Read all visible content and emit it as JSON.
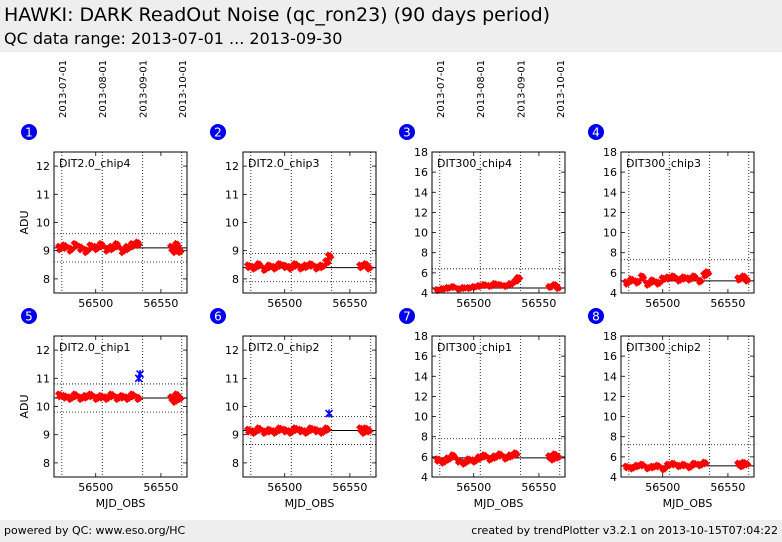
{
  "header": {
    "title": "HAWKI: DARK ReadOut Noise (qc_ron23) (90 days period)",
    "subtitle": "QC data range: 2013-07-01 ... 2013-09-30"
  },
  "footer": {
    "left": "powered by QC: www.eso.org/HC",
    "right": "created by trendPlotter v3.2.1 on 2013-10-15T07:04:22"
  },
  "date_ticks": [
    {
      "label": "2013-07-01",
      "mjd": 56474
    },
    {
      "label": "2013-08-01",
      "mjd": 56505
    },
    {
      "label": "2013-09-01",
      "mjd": 56536
    },
    {
      "label": "2013-10-01",
      "mjd": 56566
    }
  ],
  "chart_data": [
    {
      "type": "scatter",
      "panel": "1",
      "title": "DIT2.0_chip4",
      "ylabel": "ADU",
      "xlabel": "",
      "xlim": [
        56468,
        56570
      ],
      "ylim": [
        7.5,
        12.5
      ],
      "yticks": [
        8,
        9,
        10,
        11,
        12
      ],
      "xticks": [
        56500,
        56550
      ],
      "ref_line": 9.1,
      "limit_lines": [
        8.6,
        9.6
      ],
      "show_dates": true,
      "y_spread": 0.12,
      "series": [
        {
          "color": "#ff0000",
          "marker": "diamond",
          "points": [
            [
              56472,
              9.1
            ],
            [
              56476,
              9.15
            ],
            [
              56480,
              9.05
            ],
            [
              56484,
              9.2
            ],
            [
              56488,
              9.1
            ],
            [
              56492,
              9.0
            ],
            [
              56496,
              9.15
            ],
            [
              56500,
              9.1
            ],
            [
              56504,
              9.2
            ],
            [
              56508,
              9.05
            ],
            [
              56512,
              9.1
            ],
            [
              56516,
              9.2
            ],
            [
              56520,
              9.0
            ],
            [
              56524,
              9.1
            ],
            [
              56528,
              9.2
            ],
            [
              56532,
              9.25
            ],
            [
              56558,
              9.1
            ],
            [
              56560,
              9.0
            ],
            [
              56562,
              9.2
            ],
            [
              56564,
              9.0
            ]
          ]
        }
      ]
    },
    {
      "type": "scatter",
      "panel": "2",
      "title": "DIT2.0_chip3",
      "ylabel": "",
      "xlabel": "",
      "xlim": [
        56468,
        56570
      ],
      "ylim": [
        7.5,
        12.5
      ],
      "yticks": [
        8,
        9,
        10,
        11,
        12
      ],
      "xticks": [
        56500,
        56550
      ],
      "ref_line": 8.4,
      "limit_lines": [
        7.9,
        8.9
      ],
      "show_dates": false,
      "y_spread": 0.1,
      "series": [
        {
          "color": "#ff0000",
          "marker": "diamond",
          "points": [
            [
              56472,
              8.45
            ],
            [
              56476,
              8.4
            ],
            [
              56480,
              8.5
            ],
            [
              56484,
              8.35
            ],
            [
              56488,
              8.45
            ],
            [
              56492,
              8.4
            ],
            [
              56496,
              8.5
            ],
            [
              56500,
              8.45
            ],
            [
              56504,
              8.4
            ],
            [
              56508,
              8.5
            ],
            [
              56512,
              8.4
            ],
            [
              56516,
              8.45
            ],
            [
              56520,
              8.5
            ],
            [
              56524,
              8.4
            ],
            [
              56528,
              8.45
            ],
            [
              56532,
              8.6
            ],
            [
              56534,
              8.8
            ],
            [
              56558,
              8.45
            ],
            [
              56562,
              8.5
            ],
            [
              56564,
              8.4
            ]
          ]
        }
      ]
    },
    {
      "type": "scatter",
      "panel": "3",
      "title": "DIT300_chip4",
      "ylabel": "",
      "xlabel": "",
      "xlim": [
        56468,
        56570
      ],
      "ylim": [
        4,
        18
      ],
      "yticks": [
        4,
        6,
        8,
        10,
        12,
        14,
        16,
        18
      ],
      "xticks": [
        56500,
        56550
      ],
      "ref_line": 4.5,
      "limit_lines": [
        6.4
      ],
      "show_dates": true,
      "y_spread": 0.15,
      "series": [
        {
          "color": "#ff0000",
          "marker": "diamond",
          "points": [
            [
              56472,
              4.3
            ],
            [
              56476,
              4.4
            ],
            [
              56480,
              4.5
            ],
            [
              56484,
              4.6
            ],
            [
              56488,
              4.4
            ],
            [
              56492,
              4.5
            ],
            [
              56496,
              4.5
            ],
            [
              56500,
              4.6
            ],
            [
              56504,
              4.7
            ],
            [
              56508,
              4.8
            ],
            [
              56512,
              4.7
            ],
            [
              56516,
              4.9
            ],
            [
              56520,
              4.8
            ],
            [
              56524,
              4.7
            ],
            [
              56528,
              4.9
            ],
            [
              56532,
              5.2
            ],
            [
              56534,
              5.5
            ],
            [
              56558,
              4.6
            ],
            [
              56562,
              4.8
            ],
            [
              56564,
              4.5
            ]
          ]
        }
      ]
    },
    {
      "type": "scatter",
      "panel": "4",
      "title": "DIT300_chip3",
      "ylabel": "",
      "xlabel": "",
      "xlim": [
        56468,
        56570
      ],
      "ylim": [
        4,
        18
      ],
      "yticks": [
        4,
        6,
        8,
        10,
        12,
        14,
        16,
        18
      ],
      "xticks": [
        56500,
        56550
      ],
      "ref_line": 5.2,
      "limit_lines": [
        7.3
      ],
      "show_dates": false,
      "y_spread": 0.25,
      "series": [
        {
          "color": "#ff0000",
          "marker": "diamond",
          "points": [
            [
              56472,
              5.0
            ],
            [
              56476,
              5.3
            ],
            [
              56480,
              5.1
            ],
            [
              56484,
              5.6
            ],
            [
              56488,
              4.9
            ],
            [
              56492,
              5.2
            ],
            [
              56496,
              5.0
            ],
            [
              56500,
              5.4
            ],
            [
              56504,
              5.5
            ],
            [
              56508,
              5.6
            ],
            [
              56512,
              5.3
            ],
            [
              56516,
              5.5
            ],
            [
              56520,
              5.4
            ],
            [
              56524,
              5.6
            ],
            [
              56528,
              5.2
            ],
            [
              56532,
              5.8
            ],
            [
              56534,
              6.0
            ],
            [
              56558,
              5.4
            ],
            [
              56562,
              5.6
            ],
            [
              56564,
              5.3
            ]
          ]
        }
      ]
    },
    {
      "type": "scatter",
      "panel": "5",
      "title": "DIT2.0_chip1",
      "ylabel": "ADU",
      "xlabel": "MJD_OBS",
      "xlim": [
        56468,
        56570
      ],
      "ylim": [
        7.5,
        12.5
      ],
      "yticks": [
        8,
        9,
        10,
        11,
        12
      ],
      "xticks": [
        56500,
        56550
      ],
      "ref_line": 10.3,
      "limit_lines": [
        9.8,
        10.8
      ],
      "show_dates": false,
      "y_spread": 0.1,
      "series": [
        {
          "color": "#ff0000",
          "marker": "diamond",
          "points": [
            [
              56472,
              10.4
            ],
            [
              56476,
              10.35
            ],
            [
              56480,
              10.3
            ],
            [
              56484,
              10.4
            ],
            [
              56488,
              10.3
            ],
            [
              56492,
              10.35
            ],
            [
              56496,
              10.4
            ],
            [
              56500,
              10.3
            ],
            [
              56504,
              10.35
            ],
            [
              56508,
              10.3
            ],
            [
              56512,
              10.4
            ],
            [
              56516,
              10.3
            ],
            [
              56520,
              10.35
            ],
            [
              56524,
              10.3
            ],
            [
              56528,
              10.4
            ],
            [
              56532,
              10.3
            ],
            [
              56558,
              10.3
            ],
            [
              56560,
              10.2
            ],
            [
              56562,
              10.4
            ],
            [
              56564,
              10.3
            ]
          ]
        },
        {
          "color": "#0000ff",
          "marker": "star",
          "points": [
            [
              56533,
              11.0
            ],
            [
              56534,
              11.15
            ]
          ]
        }
      ]
    },
    {
      "type": "scatter",
      "panel": "6",
      "title": "DIT2.0_chip2",
      "ylabel": "",
      "xlabel": "MJD_OBS",
      "xlim": [
        56468,
        56570
      ],
      "ylim": [
        7.5,
        12.5
      ],
      "yticks": [
        8,
        9,
        10,
        11,
        12
      ],
      "xticks": [
        56500,
        56550
      ],
      "ref_line": 9.15,
      "limit_lines": [
        8.65,
        9.65
      ],
      "show_dates": false,
      "y_spread": 0.1,
      "series": [
        {
          "color": "#ff0000",
          "marker": "diamond",
          "points": [
            [
              56472,
              9.15
            ],
            [
              56476,
              9.1
            ],
            [
              56480,
              9.2
            ],
            [
              56484,
              9.1
            ],
            [
              56488,
              9.15
            ],
            [
              56492,
              9.1
            ],
            [
              56496,
              9.2
            ],
            [
              56500,
              9.15
            ],
            [
              56504,
              9.1
            ],
            [
              56508,
              9.2
            ],
            [
              56512,
              9.15
            ],
            [
              56516,
              9.1
            ],
            [
              56520,
              9.2
            ],
            [
              56524,
              9.15
            ],
            [
              56528,
              9.1
            ],
            [
              56532,
              9.2
            ],
            [
              56558,
              9.2
            ],
            [
              56560,
              9.1
            ],
            [
              56562,
              9.2
            ],
            [
              56564,
              9.15
            ]
          ]
        },
        {
          "color": "#0000ff",
          "marker": "star",
          "points": [
            [
              56534,
              9.75
            ]
          ]
        }
      ]
    },
    {
      "type": "scatter",
      "panel": "7",
      "title": "DIT300_chip1",
      "ylabel": "",
      "xlabel": "MJD_OBS",
      "xlim": [
        56468,
        56570
      ],
      "ylim": [
        4,
        18
      ],
      "yticks": [
        4,
        6,
        8,
        10,
        12,
        14,
        16,
        18
      ],
      "xticks": [
        56500,
        56550
      ],
      "ref_line": 5.9,
      "limit_lines": [
        7.8
      ],
      "show_dates": false,
      "y_spread": 0.25,
      "series": [
        {
          "color": "#ff0000",
          "marker": "diamond",
          "points": [
            [
              56472,
              5.7
            ],
            [
              56476,
              5.5
            ],
            [
              56480,
              5.8
            ],
            [
              56484,
              6.1
            ],
            [
              56488,
              5.6
            ],
            [
              56492,
              5.4
            ],
            [
              56496,
              5.7
            ],
            [
              56500,
              5.6
            ],
            [
              56504,
              5.9
            ],
            [
              56508,
              6.1
            ],
            [
              56512,
              5.8
            ],
            [
              56516,
              6.0
            ],
            [
              56520,
              6.2
            ],
            [
              56524,
              5.9
            ],
            [
              56528,
              6.1
            ],
            [
              56532,
              6.3
            ],
            [
              56558,
              6.0
            ],
            [
              56560,
              5.8
            ],
            [
              56562,
              6.2
            ],
            [
              56564,
              6.0
            ]
          ]
        }
      ]
    },
    {
      "type": "scatter",
      "panel": "8",
      "title": "DIT300_chip2",
      "ylabel": "",
      "xlabel": "MJD_OBS",
      "xlim": [
        56468,
        56570
      ],
      "ylim": [
        4,
        18
      ],
      "yticks": [
        4,
        6,
        8,
        10,
        12,
        14,
        16,
        18
      ],
      "xticks": [
        56500,
        56550
      ],
      "ref_line": 5.1,
      "limit_lines": [
        7.2
      ],
      "show_dates": false,
      "y_spread": 0.2,
      "series": [
        {
          "color": "#ff0000",
          "marker": "diamond",
          "points": [
            [
              56472,
              5.0
            ],
            [
              56476,
              4.9
            ],
            [
              56480,
              5.1
            ],
            [
              56484,
              5.2
            ],
            [
              56488,
              4.9
            ],
            [
              56492,
              5.0
            ],
            [
              56496,
              5.1
            ],
            [
              56500,
              4.8
            ],
            [
              56504,
              5.2
            ],
            [
              56508,
              5.3
            ],
            [
              56512,
              5.1
            ],
            [
              56516,
              5.2
            ],
            [
              56520,
              5.0
            ],
            [
              56524,
              5.3
            ],
            [
              56528,
              5.2
            ],
            [
              56532,
              5.4
            ],
            [
              56558,
              5.3
            ],
            [
              56560,
              5.1
            ],
            [
              56562,
              5.4
            ],
            [
              56564,
              5.3
            ]
          ]
        }
      ]
    }
  ]
}
